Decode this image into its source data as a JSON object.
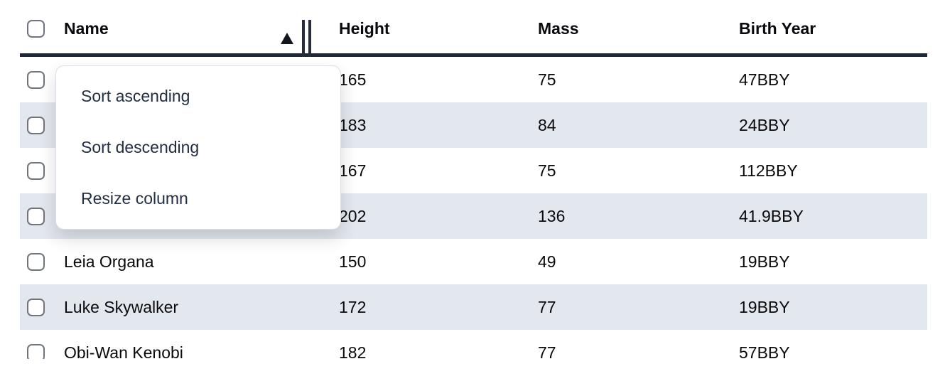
{
  "colors": {
    "header_border": "#1e2838",
    "stripe_row": "#e3e7ee",
    "cell_text": "#0a0a0a",
    "menu_text": "#222e42"
  },
  "table": {
    "select_all_checkbox_state": "unchecked",
    "columns": [
      {
        "id": "name",
        "label": "Name",
        "sort": "ascending"
      },
      {
        "id": "height",
        "label": "Height"
      },
      {
        "id": "mass",
        "label": "Mass"
      },
      {
        "id": "birth_year",
        "label": "Birth Year"
      }
    ],
    "rows": [
      {
        "checkbox": "unchecked",
        "name": "",
        "height": "165",
        "mass": "75",
        "birth_year": "47BBY"
      },
      {
        "checkbox": "unchecked",
        "name": "",
        "height": "183",
        "mass": "84",
        "birth_year": "24BBY"
      },
      {
        "checkbox": "unchecked",
        "name": "",
        "height": "167",
        "mass": "75",
        "birth_year": "112BBY"
      },
      {
        "checkbox": "unchecked",
        "name": "",
        "height": "202",
        "mass": "136",
        "birth_year": "41.9BBY"
      },
      {
        "checkbox": "unchecked",
        "name": "Leia Organa",
        "height": "150",
        "mass": "49",
        "birth_year": "19BBY"
      },
      {
        "checkbox": "unchecked",
        "name": "Luke Skywalker",
        "height": "172",
        "mass": "77",
        "birth_year": "19BBY"
      },
      {
        "checkbox": "unchecked",
        "name": "Obi-Wan Kenobi",
        "height": "182",
        "mass": "77",
        "birth_year": "57BBY"
      }
    ]
  },
  "column_menu": {
    "for_column": "Name",
    "items": [
      {
        "label": "Sort ascending"
      },
      {
        "label": "Sort descending"
      },
      {
        "label": "Resize column"
      }
    ]
  }
}
